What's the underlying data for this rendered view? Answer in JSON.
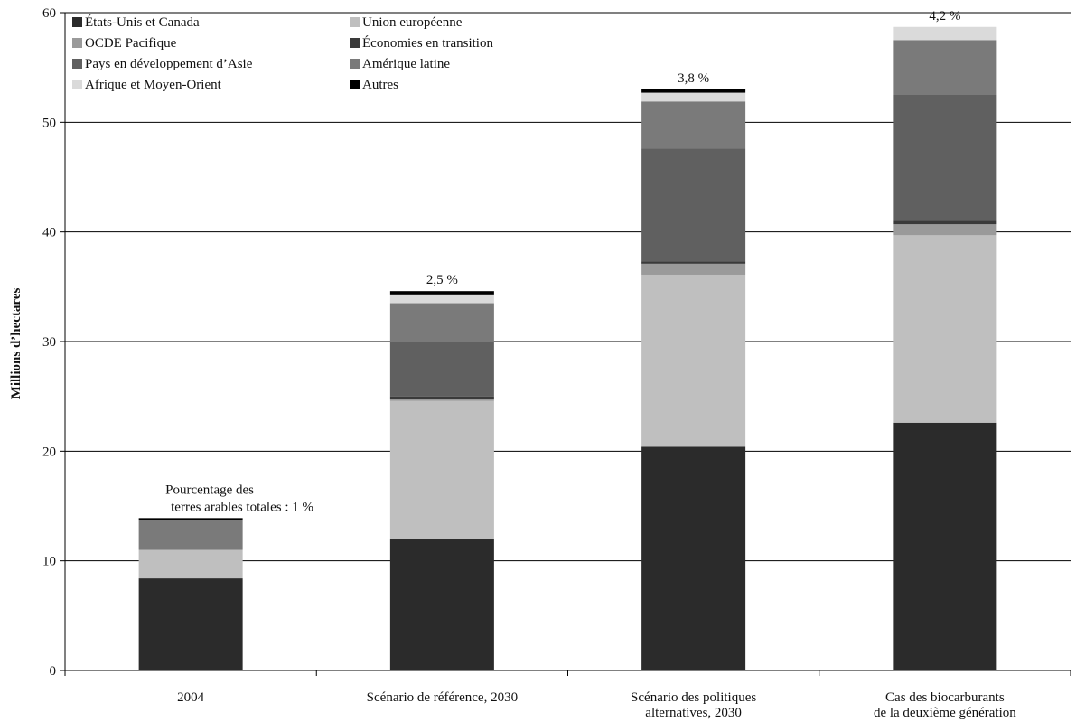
{
  "chart_data": {
    "type": "bar",
    "stacked": true,
    "ylabel": "Millions d’hectares",
    "ylim": [
      0,
      60
    ],
    "yticks": [
      0,
      10,
      20,
      30,
      40,
      50,
      60
    ],
    "grid": true,
    "legend_position": "top-left",
    "categories": [
      [
        "2004"
      ],
      [
        "Scénario de référence, 2030"
      ],
      [
        "Scénario des politiques",
        "alternatives, 2030"
      ],
      [
        "Cas des biocarburants",
        "de la deuxième génération"
      ]
    ],
    "series": [
      {
        "name": "États-Unis et Canada",
        "color": "#2b2b2b",
        "values": [
          8.4,
          12.0,
          20.4,
          22.6
        ]
      },
      {
        "name": "Union européenne",
        "color": "#bfbfbf",
        "values": [
          2.6,
          12.6,
          15.7,
          17.1
        ]
      },
      {
        "name": "OCDE Pacifique",
        "color": "#9a9a9a",
        "values": [
          0.0,
          0.2,
          1.0,
          1.0
        ]
      },
      {
        "name": "Économies en transition",
        "color": "#3a3a3a",
        "values": [
          0.0,
          0.2,
          0.2,
          0.3
        ]
      },
      {
        "name": "Pays en développement d’Asie",
        "color": "#606060",
        "values": [
          0.0,
          5.0,
          10.3,
          11.5
        ]
      },
      {
        "name": "Amérique latine",
        "color": "#7a7a7a",
        "values": [
          2.7,
          3.5,
          4.3,
          5.0
        ]
      },
      {
        "name": "Afrique et Moyen-Orient",
        "color": "#dadada",
        "values": [
          0.0,
          0.8,
          0.8,
          1.2
        ]
      },
      {
        "name": "Autres",
        "color": "#000000",
        "values": [
          0.2,
          0.3,
          0.3,
          0.0
        ]
      }
    ],
    "annotations": [
      {
        "category_index": 0,
        "lines": [
          "Pourcentage des",
          "terres arables totales : 1 %"
        ]
      },
      {
        "category_index": 1,
        "lines": [
          "2,5 %"
        ]
      },
      {
        "category_index": 2,
        "lines": [
          "3,8 %"
        ]
      },
      {
        "category_index": 3,
        "lines": [
          "4,2 %"
        ]
      }
    ]
  }
}
